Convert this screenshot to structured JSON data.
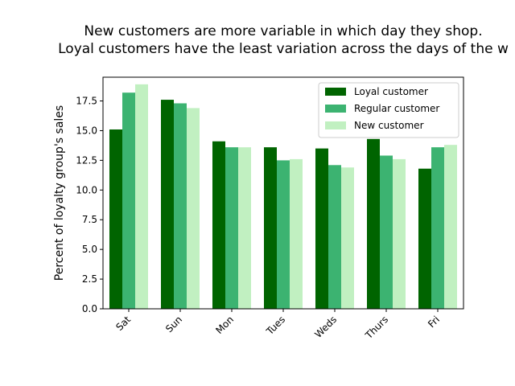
{
  "chart_data": {
    "type": "bar",
    "title_lines": [
      "New customers are more variable in which day they shop.",
      "Loyal customers have the least variation across the days of the w"
    ],
    "xlabel": "",
    "ylabel": "Percent of loyalty group's sales",
    "categories": [
      "Sat",
      "Sun",
      "Mon",
      "Tues",
      "Weds",
      "Thurs",
      "Fri"
    ],
    "ylim": [
      0,
      19.5
    ],
    "yticks": [
      "0.0",
      "2.5",
      "5.0",
      "7.5",
      "10.0",
      "12.5",
      "15.0",
      "17.5"
    ],
    "grid": false,
    "legend_position": "upper right",
    "series": [
      {
        "name": "Loyal customer",
        "color": "#006400",
        "values": [
          15.1,
          17.6,
          14.1,
          13.6,
          13.5,
          14.3,
          11.8
        ]
      },
      {
        "name": "Regular customer",
        "color": "#3CB371",
        "values": [
          18.2,
          17.3,
          13.6,
          12.5,
          12.1,
          12.9,
          13.6
        ]
      },
      {
        "name": "New customer",
        "color": "#C1F0C1",
        "values": [
          18.9,
          16.9,
          13.6,
          12.6,
          11.9,
          12.6,
          13.8
        ]
      }
    ]
  }
}
